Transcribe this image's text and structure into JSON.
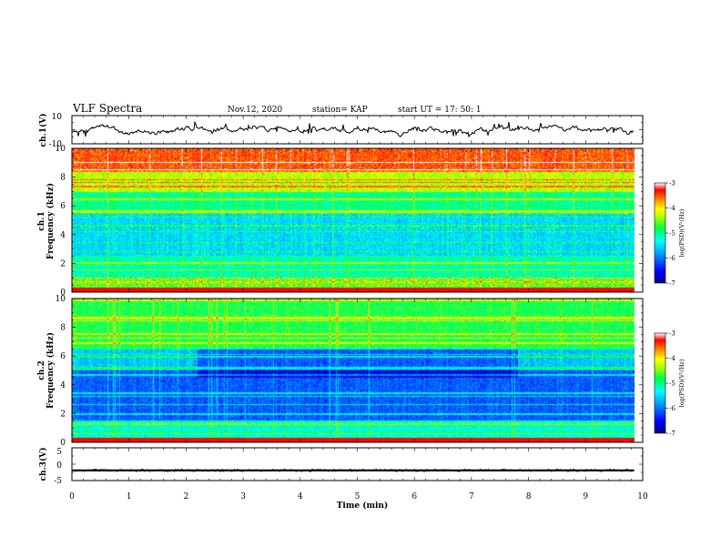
{
  "header": {
    "title": "VLF Spectra",
    "date": "Nov.12, 2020",
    "station": "station= KAP",
    "start": "start  UT =   17: 50: 1"
  },
  "colors": {
    "waveform": "#000000",
    "colormap": [
      "#000080",
      "#0000ff",
      "#00a0ff",
      "#00ffff",
      "#00ff40",
      "#b0ff00",
      "#ffff00",
      "#ff8000",
      "#ff0000",
      "#ffffff"
    ]
  },
  "chart_data": [
    {
      "panel": "ch1-waveform",
      "type": "line",
      "ylabel": "ch.1(V)",
      "yticks": [
        "10",
        "-10"
      ],
      "ylim": [
        -10,
        10
      ],
      "xlim": [
        0,
        10
      ],
      "data_extent_min": 9.85,
      "values": "noisy waveform, approx. range -5 to +6 V"
    },
    {
      "panel": "ch1-spectrogram",
      "type": "heatmap",
      "ylabel": [
        "ch.1",
        "Frequency (kHz)"
      ],
      "yticks": [
        "0",
        "2",
        "4",
        "6",
        "8",
        "10"
      ],
      "ylim": [
        0,
        10
      ],
      "xlim": [
        0,
        10
      ],
      "colorbar": {
        "label": "log(PSD)(V²/Hz)",
        "ticks": [
          "-3",
          "-4",
          "-5",
          "-6",
          "-7"
        ],
        "range": [
          -7,
          -3
        ]
      },
      "bands": [
        {
          "freq_khz": [
            0,
            1
          ],
          "level": -4.6
        },
        {
          "freq_khz": [
            1,
            2.5
          ],
          "level": -5.1
        },
        {
          "freq_khz": [
            2.5,
            5.5
          ],
          "level": -5.5
        },
        {
          "freq_khz": [
            5.5,
            7
          ],
          "level": -5.0
        },
        {
          "freq_khz": [
            7,
            8.5
          ],
          "level": -4.3
        },
        {
          "freq_khz": [
            8.5,
            10
          ],
          "level": -3.5
        }
      ]
    },
    {
      "panel": "ch2-spectrogram",
      "type": "heatmap",
      "ylabel": [
        "ch.2",
        "Frequency (kHz)"
      ],
      "yticks": [
        "0",
        "2",
        "4",
        "6",
        "8",
        "10"
      ],
      "ylim": [
        0,
        10
      ],
      "xlim": [
        0,
        10
      ],
      "colorbar": {
        "label": "log(PSD)(V²/Hz)",
        "ticks": [
          "-3",
          "-4",
          "-5",
          "-6",
          "-7"
        ],
        "range": [
          -7,
          -3
        ]
      },
      "bands": [
        {
          "freq_khz": [
            0,
            1.5
          ],
          "level": -5.2
        },
        {
          "freq_khz": [
            1.5,
            5
          ],
          "level": -6.1
        },
        {
          "freq_khz": [
            5,
            6.5
          ],
          "level": -5.6
        },
        {
          "freq_khz": [
            6.5,
            10
          ],
          "level": -4.8
        }
      ]
    },
    {
      "panel": "ch3-waveform",
      "type": "line",
      "ylabel": "ch.3(V)",
      "yticks": [
        "5",
        "0",
        "-5"
      ],
      "ylim": [
        -5,
        5
      ],
      "xlim": [
        0,
        10
      ],
      "values": "dense band approx. -2.2 to -1.6 V"
    }
  ],
  "xaxis": {
    "label": "Time (min)",
    "ticks": [
      "0",
      "1",
      "2",
      "3",
      "4",
      "5",
      "6",
      "7",
      "8",
      "9",
      "10"
    ]
  }
}
